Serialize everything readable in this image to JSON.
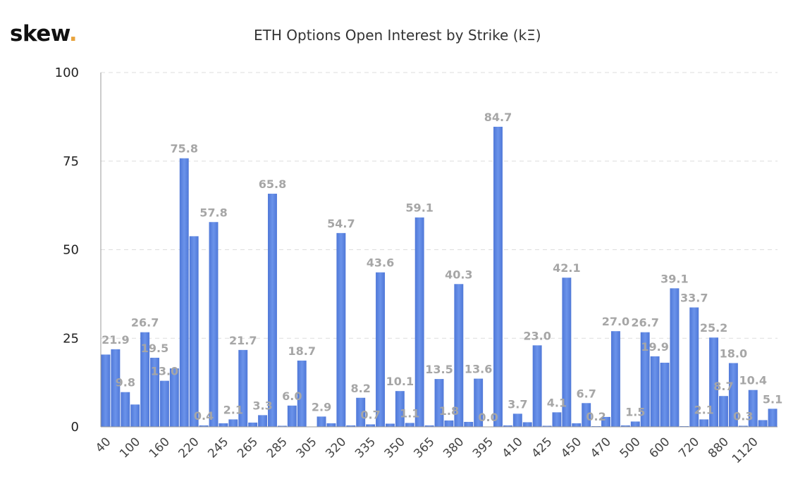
{
  "logo": {
    "text": "skew",
    "dot": "."
  },
  "chart_data": {
    "type": "bar",
    "title": "ETH Options Open Interest by Strike (kΞ)",
    "xlabel": "",
    "ylabel": "",
    "ylim": [
      0,
      100
    ],
    "yticks": [
      0,
      25,
      50,
      75,
      100
    ],
    "grid": true,
    "bar_color": "#6b93ea",
    "bar_color_dark": "#4f78d8",
    "label_color": "#a6a6a6",
    "x_tick_labels": [
      "40",
      "100",
      "160",
      "220",
      "245",
      "265",
      "285",
      "305",
      "320",
      "335",
      "350",
      "365",
      "380",
      "395",
      "410",
      "425",
      "450",
      "470",
      "500",
      "600",
      "720",
      "880",
      "1120"
    ],
    "bars": [
      {
        "value": 20.4,
        "label": ""
      },
      {
        "value": 21.9,
        "label": "21.9"
      },
      {
        "value": 9.8,
        "label": "9.8"
      },
      {
        "value": 6.3,
        "label": ""
      },
      {
        "value": 26.7,
        "label": "26.7"
      },
      {
        "value": 19.5,
        "label": "19.5"
      },
      {
        "value": 13.0,
        "label": "13.0"
      },
      {
        "value": 16.5,
        "label": ""
      },
      {
        "value": 75.8,
        "label": "75.8"
      },
      {
        "value": 53.8,
        "label": ""
      },
      {
        "value": 0.4,
        "label": "0.4"
      },
      {
        "value": 57.8,
        "label": "57.8"
      },
      {
        "value": 1.0,
        "label": ""
      },
      {
        "value": 2.1,
        "label": "2.1"
      },
      {
        "value": 21.7,
        "label": "21.7"
      },
      {
        "value": 1.2,
        "label": ""
      },
      {
        "value": 3.3,
        "label": "3.3"
      },
      {
        "value": 65.8,
        "label": "65.8"
      },
      {
        "value": 0.3,
        "label": ""
      },
      {
        "value": 6.0,
        "label": "6.0"
      },
      {
        "value": 18.7,
        "label": "18.7"
      },
      {
        "value": 0.0,
        "label": ""
      },
      {
        "value": 2.9,
        "label": "2.9"
      },
      {
        "value": 1.0,
        "label": ""
      },
      {
        "value": 54.7,
        "label": "54.7"
      },
      {
        "value": 0.4,
        "label": ""
      },
      {
        "value": 8.2,
        "label": "8.2"
      },
      {
        "value": 0.7,
        "label": "0.7"
      },
      {
        "value": 43.6,
        "label": "43.6"
      },
      {
        "value": 0.9,
        "label": ""
      },
      {
        "value": 10.1,
        "label": "10.1"
      },
      {
        "value": 1.1,
        "label": "1.1"
      },
      {
        "value": 59.1,
        "label": "59.1"
      },
      {
        "value": 0.4,
        "label": ""
      },
      {
        "value": 13.5,
        "label": "13.5"
      },
      {
        "value": 1.8,
        "label": "1.8"
      },
      {
        "value": 40.3,
        "label": "40.3"
      },
      {
        "value": 1.4,
        "label": ""
      },
      {
        "value": 13.6,
        "label": "13.6"
      },
      {
        "value": 0.0,
        "label": "0.0"
      },
      {
        "value": 84.7,
        "label": "84.7"
      },
      {
        "value": 0.4,
        "label": ""
      },
      {
        "value": 3.7,
        "label": "3.7"
      },
      {
        "value": 1.3,
        "label": ""
      },
      {
        "value": 23.0,
        "label": "23.0"
      },
      {
        "value": 0.3,
        "label": ""
      },
      {
        "value": 4.1,
        "label": "4.1"
      },
      {
        "value": 42.1,
        "label": "42.1"
      },
      {
        "value": 1.0,
        "label": ""
      },
      {
        "value": 6.7,
        "label": "6.7"
      },
      {
        "value": 0.2,
        "label": "0.2"
      },
      {
        "value": 2.8,
        "label": ""
      },
      {
        "value": 27.0,
        "label": "27.0"
      },
      {
        "value": 0.4,
        "label": ""
      },
      {
        "value": 1.5,
        "label": "1.5"
      },
      {
        "value": 26.7,
        "label": "26.7"
      },
      {
        "value": 19.9,
        "label": "19.9"
      },
      {
        "value": 18.1,
        "label": ""
      },
      {
        "value": 39.1,
        "label": "39.1"
      },
      {
        "value": 0.2,
        "label": ""
      },
      {
        "value": 33.7,
        "label": "33.7"
      },
      {
        "value": 2.1,
        "label": "2.1"
      },
      {
        "value": 25.2,
        "label": "25.2"
      },
      {
        "value": 8.7,
        "label": "8.7"
      },
      {
        "value": 18.0,
        "label": "18.0"
      },
      {
        "value": 0.3,
        "label": "0.3"
      },
      {
        "value": 10.4,
        "label": "10.4"
      },
      {
        "value": 1.9,
        "label": ""
      },
      {
        "value": 5.1,
        "label": "5.1"
      }
    ]
  }
}
